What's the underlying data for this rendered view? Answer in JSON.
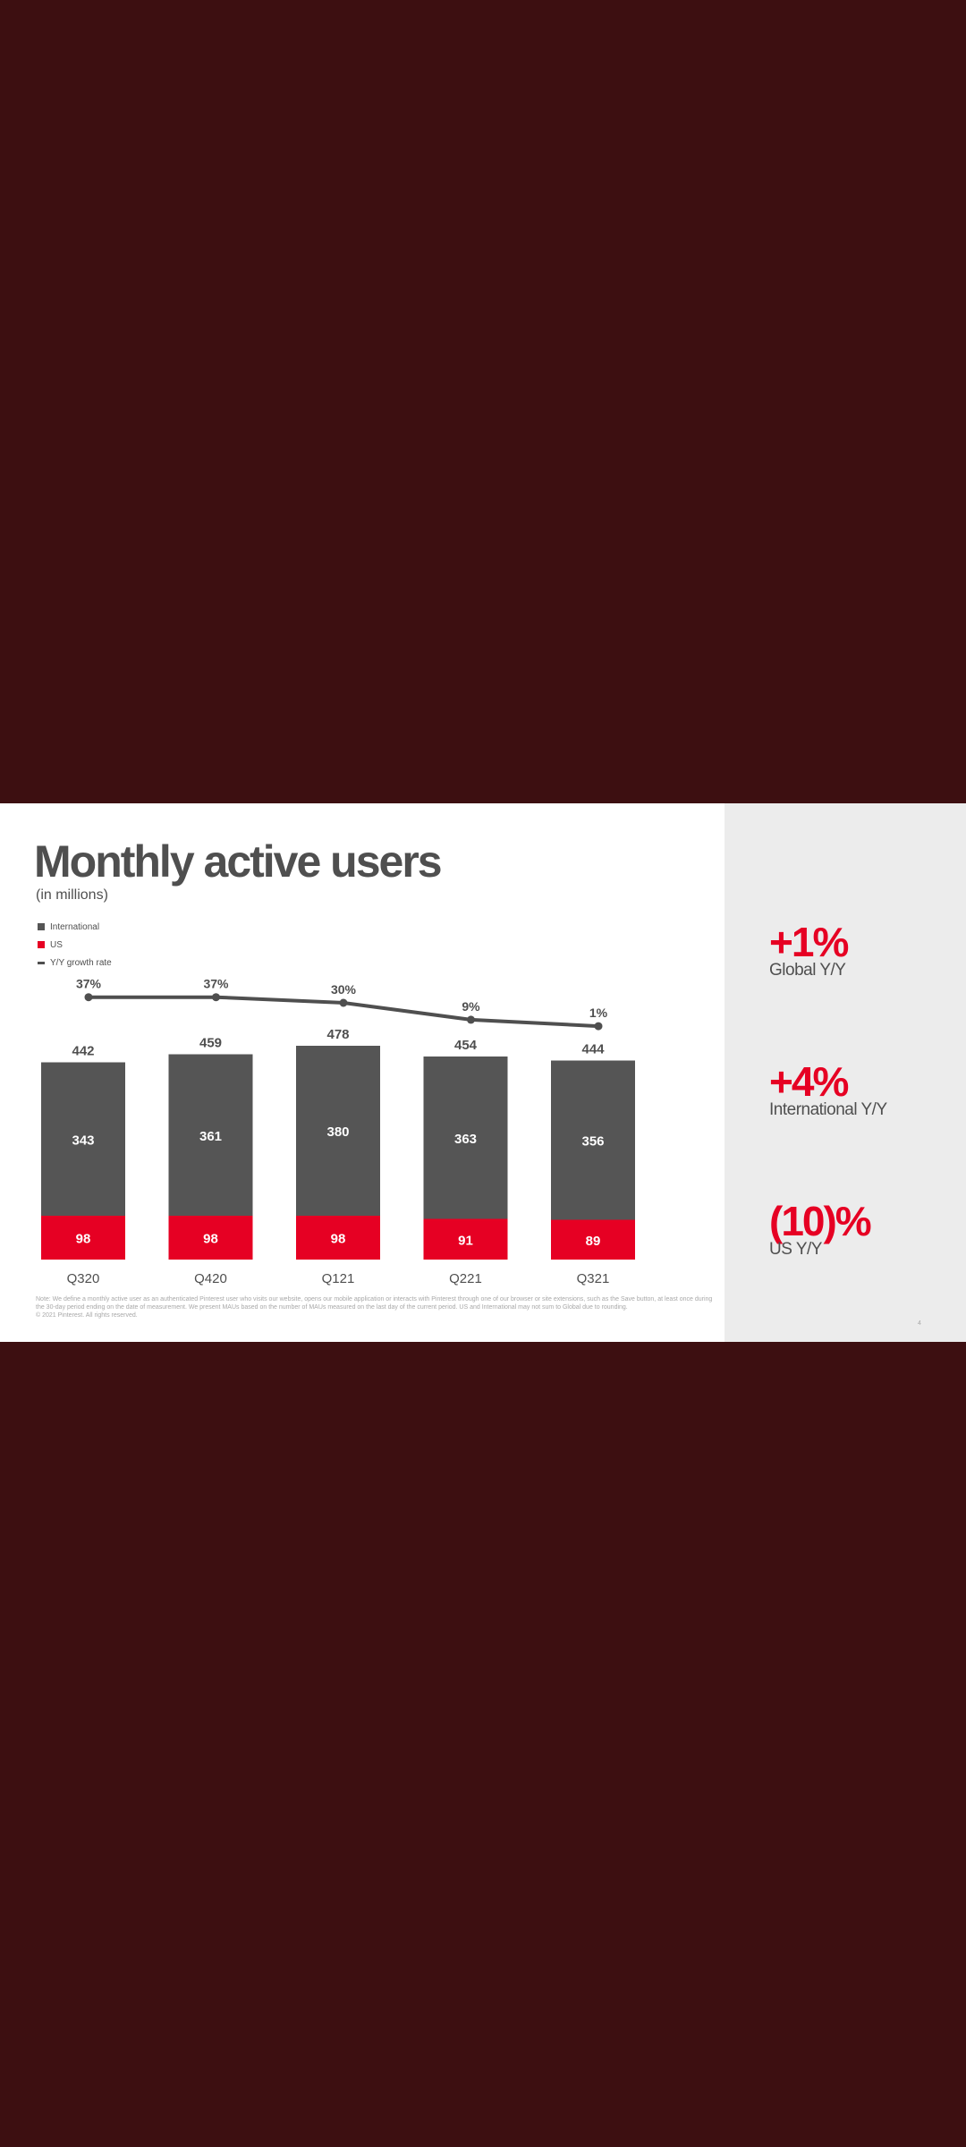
{
  "page": {
    "title": "Monthly active users",
    "subtitle": "(in millions)",
    "footnote": "Note: We define a monthly active user as an authenticated Pinterest user who visits our website, opens our mobile application or interacts with Pinterest through one of our browser or site extensions, such as the Save button, at least once during the 30-day period ending on the date of measurement. We present MAUs based on the number of MAUs measured on the last day of the current period. US and International may not sum to Global due to rounding.",
    "copyright": "© 2021 Pinterest. All rights reserved.",
    "page_number": "4"
  },
  "legend": [
    {
      "label": "International",
      "color": "#555555",
      "shape": "square"
    },
    {
      "label": "US",
      "color": "#e60023",
      "shape": "square"
    },
    {
      "label": "Y/Y growth rate",
      "color": "#4f4f4f",
      "shape": "line"
    }
  ],
  "stats": [
    {
      "value": "+1%",
      "label": "Global Y/Y"
    },
    {
      "value": "+4%",
      "label": "International Y/Y"
    },
    {
      "value": "(10)%",
      "label": "US Y/Y"
    }
  ],
  "chart_data": {
    "type": "bar",
    "stacked": true,
    "categories": [
      "Q320",
      "Q420",
      "Q121",
      "Q221",
      "Q321"
    ],
    "series": [
      {
        "name": "US",
        "values": [
          98,
          98,
          98,
          91,
          89
        ],
        "color": "#e60023"
      },
      {
        "name": "International",
        "values": [
          343,
          361,
          380,
          363,
          356
        ],
        "color": "#555555"
      }
    ],
    "totals": [
      442,
      459,
      478,
      454,
      444
    ],
    "line_series": {
      "name": "Y/Y growth rate",
      "values": [
        37,
        37,
        30,
        9,
        1
      ],
      "labels": [
        "37%",
        "37%",
        "30%",
        "9%",
        "1%"
      ],
      "color": "#4f4f4f"
    },
    "title": "Monthly active users",
    "xlabel": "",
    "ylabel": ""
  }
}
